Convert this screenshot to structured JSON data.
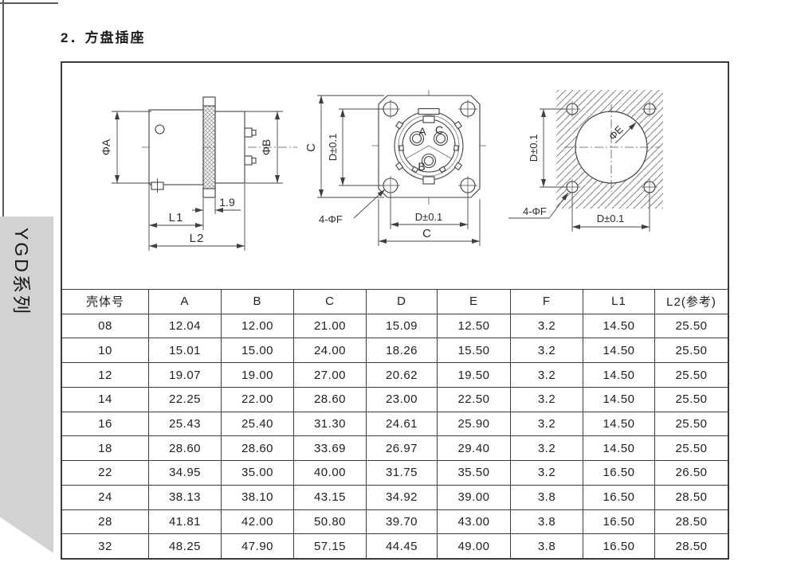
{
  "page": {
    "title": "2．方盘插座"
  },
  "sidebar": {
    "series_label": "YGD系列"
  },
  "diagrams": {
    "side_view": {
      "phi_a": "ΦA",
      "phi_b": "ΦB",
      "flange_thickness": "1.9",
      "l1": "L1",
      "l2": "L2"
    },
    "front_view": {
      "c_vertical": "C",
      "d_vertical": "D±0.1",
      "corner_holes": "4-ΦF",
      "d_horizontal": "D±0.1",
      "c_horizontal": "C",
      "pin_a": "A",
      "pin_b": "B",
      "pin_c": "C"
    },
    "panel_cutout": {
      "d_vertical": "D±0.1",
      "phi_e": "ΦE",
      "corner_holes": "4-ΦF",
      "d_horizontal": "D±0.1"
    }
  },
  "table": {
    "headers": [
      "壳体号",
      "A",
      "B",
      "C",
      "D",
      "E",
      "F",
      "L1",
      "L2(参考)"
    ],
    "rows": [
      [
        "08",
        "12.04",
        "12.00",
        "21.00",
        "15.09",
        "12.50",
        "3.2",
        "14.50",
        "25.50"
      ],
      [
        "10",
        "15.01",
        "15.00",
        "24.00",
        "18.26",
        "15.50",
        "3.2",
        "14.50",
        "25.50"
      ],
      [
        "12",
        "19.07",
        "19.00",
        "27.00",
        "20.62",
        "19.50",
        "3.2",
        "14.50",
        "25.50"
      ],
      [
        "14",
        "22.25",
        "22.00",
        "28.60",
        "23.00",
        "22.50",
        "3.2",
        "14.50",
        "25.50"
      ],
      [
        "16",
        "25.43",
        "25.40",
        "31.30",
        "24.61",
        "25.90",
        "3.2",
        "14.50",
        "25.50"
      ],
      [
        "18",
        "28.60",
        "28.60",
        "33.69",
        "26.97",
        "29.40",
        "3.2",
        "14.50",
        "25.50"
      ],
      [
        "22",
        "34.95",
        "35.00",
        "40.00",
        "31.75",
        "35.50",
        "3.2",
        "16.50",
        "26.50"
      ],
      [
        "24",
        "38.13",
        "38.10",
        "43.15",
        "34.92",
        "39.00",
        "3.8",
        "16.50",
        "28.50"
      ],
      [
        "28",
        "41.81",
        "42.00",
        "50.80",
        "39.70",
        "43.00",
        "3.8",
        "16.50",
        "28.50"
      ],
      [
        "32",
        "48.25",
        "47.90",
        "57.15",
        "44.45",
        "49.00",
        "3.8",
        "16.50",
        "28.50"
      ]
    ]
  }
}
